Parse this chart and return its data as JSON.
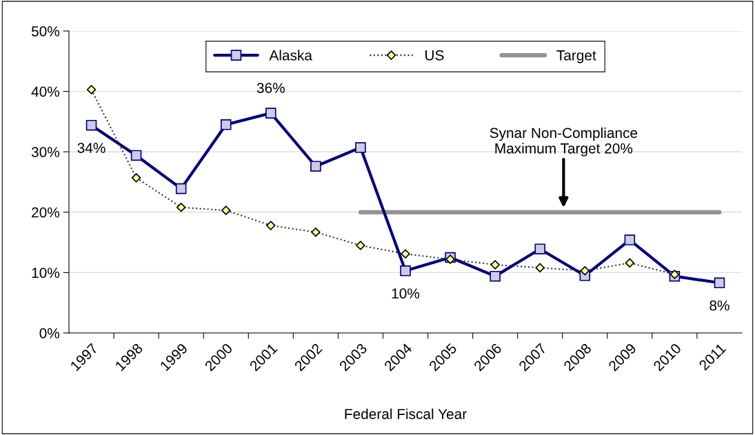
{
  "chart_data": {
    "type": "line",
    "xlabel": "Federal Fiscal Year",
    "categories": [
      "1997",
      "1998",
      "1999",
      "2000",
      "2001",
      "2002",
      "2003",
      "2004",
      "2005",
      "2006",
      "2007",
      "2008",
      "2009",
      "2010",
      "2011"
    ],
    "series": [
      {
        "name": "Alaska",
        "color": "#000080",
        "marker": "square",
        "line_style": "solid",
        "values": [
          34.4,
          29.4,
          23.9,
          34.5,
          36.4,
          27.6,
          30.7,
          10.3,
          12.5,
          9.4,
          13.9,
          9.5,
          15.4,
          9.4,
          8.3
        ],
        "value_labels": [
          "34%",
          null,
          null,
          null,
          "36%",
          null,
          null,
          "10%",
          null,
          null,
          null,
          null,
          null,
          null,
          "8%"
        ]
      },
      {
        "name": "US",
        "color": "#ffff99",
        "marker": "diamond",
        "line_style": "dotted",
        "values": [
          40.3,
          25.7,
          20.8,
          20.3,
          17.8,
          16.7,
          14.5,
          13.1,
          12.2,
          11.3,
          10.8,
          10.3,
          11.6,
          9.7,
          null
        ]
      },
      {
        "name": "Target",
        "color": "#939393",
        "marker": "none",
        "line_style": "solid",
        "values": [
          null,
          null,
          null,
          null,
          null,
          null,
          20,
          20,
          20,
          20,
          20,
          20,
          20,
          20,
          20
        ]
      }
    ],
    "ylim": [
      0,
      50
    ],
    "yticks": [
      {
        "value": 0,
        "label": "0%"
      },
      {
        "value": 10,
        "label": "10%"
      },
      {
        "value": 20,
        "label": "20%"
      },
      {
        "value": 30,
        "label": "30%"
      },
      {
        "value": 40,
        "label": "40%"
      },
      {
        "value": 50,
        "label": "50%"
      }
    ],
    "grid": "y",
    "legend": "top",
    "annotations": [
      "Synar Non-Compliance\nMaximum Target 20%"
    ]
  }
}
